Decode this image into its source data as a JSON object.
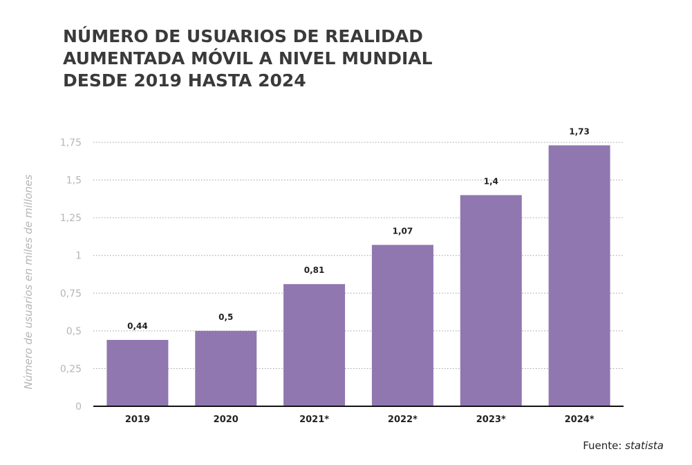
{
  "title_lines": [
    "NÚMERO DE USUARIOS DE REALIDAD",
    "AUMENTADA MÓVIL A NIVEL MUNDIAL",
    "DESDE 2019 HASTA 2024"
  ],
  "source": {
    "prefix": "Fuente: ",
    "brand": "statista"
  },
  "colors": {
    "bar": "#9077b0",
    "grid": "#9a9a9a",
    "axis": "#111111",
    "tick_text": "#b5b5b5",
    "ylabel_text": "#b5b5b5"
  },
  "chart_data": {
    "type": "bar",
    "title": "NÚMERO DE USUARIOS DE REALIDAD AUMENTADA MÓVIL A NIVEL MUNDIAL DESDE 2019 HASTA 2024",
    "xlabel": "",
    "ylabel": "Número de usuarios en miles de millones",
    "categories": [
      "2019",
      "2020",
      "2021*",
      "2022*",
      "2023*",
      "2024*"
    ],
    "values": [
      0.44,
      0.5,
      0.81,
      1.07,
      1.4,
      1.73
    ],
    "value_labels": [
      "0,44",
      "0,5",
      "0,81",
      "1,07",
      "1,4",
      "1,73"
    ],
    "ylim": [
      0,
      1.75
    ],
    "yticks": [
      0,
      0.25,
      0.5,
      0.75,
      1,
      1.25,
      1.5,
      1.75
    ],
    "ytick_labels": [
      "0",
      "0,25",
      "0,5",
      "0,75",
      "1",
      "1,25",
      "1,5",
      "1,75"
    ],
    "grid": true,
    "legend": "none"
  }
}
